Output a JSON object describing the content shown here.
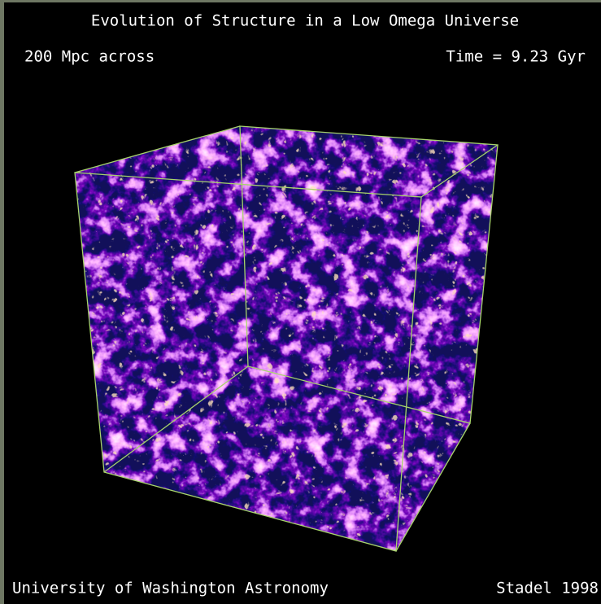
{
  "title": "Evolution of Structure in a Low Omega Universe",
  "scale_label": "200 Mpc across",
  "time_label": "Time =  9.23 Gyr",
  "credit_left": "University of Washington Astronomy",
  "credit_right": "Stadel 1998"
}
